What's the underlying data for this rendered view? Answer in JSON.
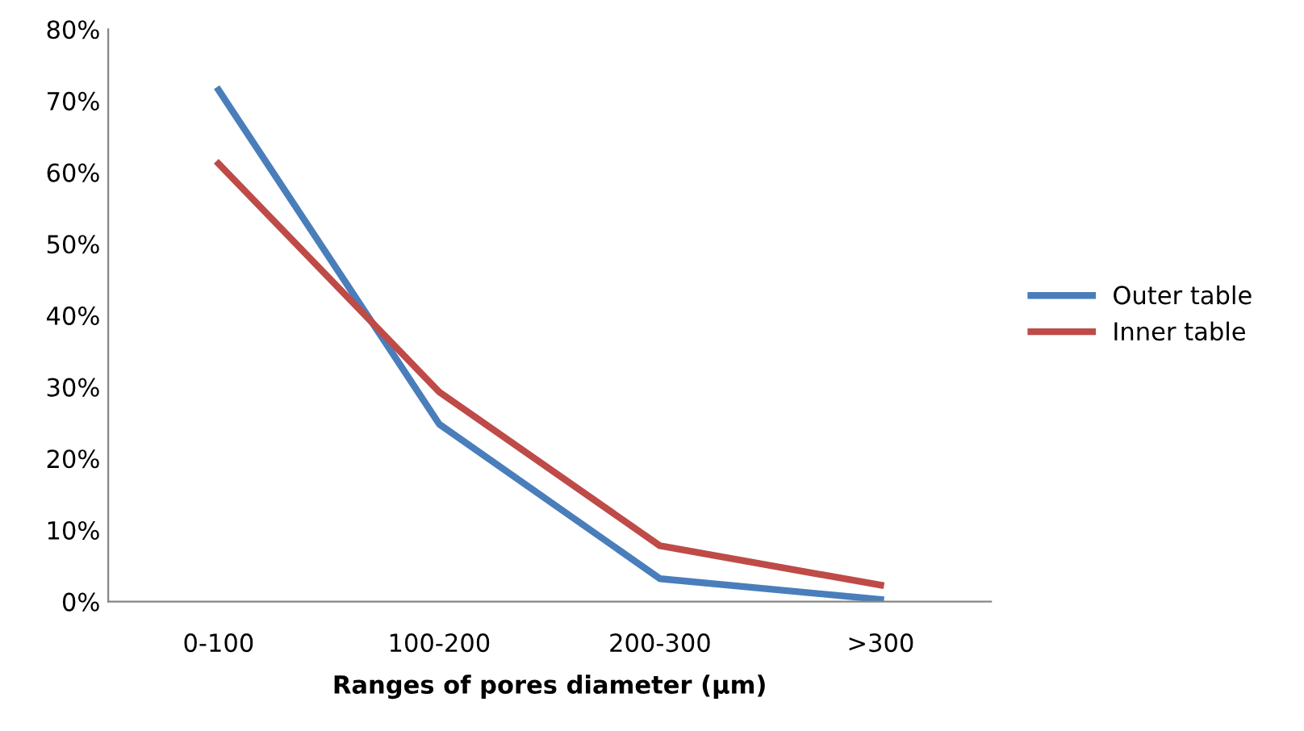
{
  "chart_data": {
    "type": "line",
    "xlabel": "Ranges of pores diameter (µm)",
    "categories": [
      "0-100",
      "100-200",
      "200-300",
      ">300"
    ],
    "series": [
      {
        "name": "Outer table",
        "color": "#4a7ebb",
        "values": [
          71.5,
          24.8,
          3.2,
          0.3
        ]
      },
      {
        "name": "Inner table",
        "color": "#be4b48",
        "values": [
          61.2,
          29.3,
          7.8,
          2.3
        ]
      }
    ],
    "ylim": [
      0,
      80
    ],
    "yticks": [
      {
        "value": 0,
        "label": "0%"
      },
      {
        "value": 10,
        "label": "10%"
      },
      {
        "value": 20,
        "label": "20%"
      },
      {
        "value": 30,
        "label": "30%"
      },
      {
        "value": 40,
        "label": "40%"
      },
      {
        "value": 50,
        "label": "50%"
      },
      {
        "value": 60,
        "label": "60%"
      },
      {
        "value": 70,
        "label": "70%"
      },
      {
        "value": 80,
        "label": "80%"
      }
    ],
    "grid": false,
    "legend": "right",
    "marker": "none",
    "line_style": "solid"
  }
}
